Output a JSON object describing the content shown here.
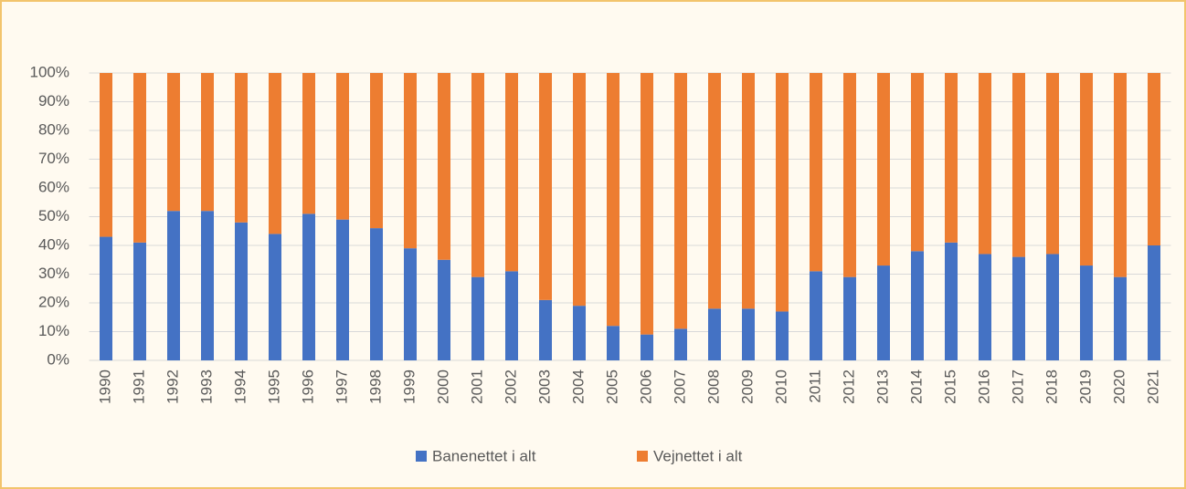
{
  "chart_data": {
    "type": "stacked_bar_100",
    "categories": [
      "1990",
      "1991",
      "1992",
      "1993",
      "1994",
      "1995",
      "1996",
      "1997",
      "1998",
      "1999",
      "2000",
      "2001",
      "2002",
      "2003",
      "2004",
      "2005",
      "2006",
      "2007",
      "2008",
      "2009",
      "2010",
      "2011",
      "2012",
      "2013",
      "2014",
      "2015",
      "2016",
      "2017",
      "2018",
      "2019",
      "2020",
      "2021"
    ],
    "series": [
      {
        "name": "Banenettet i alt",
        "color": "#4472c4",
        "values": [
          43,
          41,
          52,
          52,
          48,
          44,
          51,
          49,
          46,
          39,
          35,
          29,
          31,
          21,
          19,
          12,
          9,
          11,
          18,
          18,
          17,
          31,
          29,
          33,
          38,
          41,
          37,
          36,
          37,
          33,
          29,
          40
        ]
      },
      {
        "name": "Vejnettet i alt",
        "color": "#ed7d31",
        "values": [
          57,
          59,
          48,
          48,
          52,
          56,
          49,
          51,
          54,
          61,
          65,
          71,
          69,
          79,
          81,
          88,
          91,
          89,
          82,
          82,
          83,
          69,
          71,
          67,
          62,
          59,
          63,
          64,
          63,
          67,
          71,
          60
        ]
      }
    ],
    "ylim": [
      0,
      100
    ],
    "yticks": [
      {
        "value": 0,
        "label": "0%"
      },
      {
        "value": 10,
        "label": "10%"
      },
      {
        "value": 20,
        "label": "20%"
      },
      {
        "value": 30,
        "label": "30%"
      },
      {
        "value": 40,
        "label": "40%"
      },
      {
        "value": 50,
        "label": "50%"
      },
      {
        "value": 60,
        "label": "60%"
      },
      {
        "value": 70,
        "label": "70%"
      },
      {
        "value": 80,
        "label": "80%"
      },
      {
        "value": 90,
        "label": "90%"
      },
      {
        "value": 100,
        "label": "100%"
      }
    ],
    "grid": true,
    "legend": "bottom"
  }
}
